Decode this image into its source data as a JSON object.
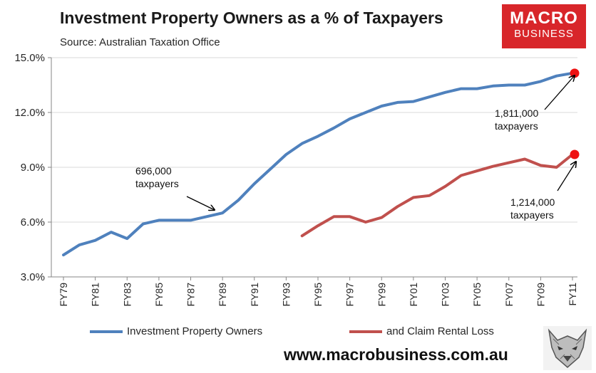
{
  "header": {
    "title": "Investment Property Owners as a % of Taxpayers",
    "subtitle": "Source: Australian Taxation Office"
  },
  "logo": {
    "line1": "MACRO",
    "line2": "BUSINESS"
  },
  "footer": {
    "website": "www.macrobusiness.com.au"
  },
  "colors": {
    "series1": "#4f81bd",
    "series2": "#c0504d",
    "marker": "#ee1111",
    "logo_bg": "#d8262a"
  },
  "chart_data": {
    "type": "line",
    "title": "Investment Property Owners as a % of Taxpayers",
    "x": [
      "FY79",
      "FY80",
      "FY81",
      "FY82",
      "FY83",
      "FY84",
      "FY85",
      "FY86",
      "FY87",
      "FY88",
      "FY89",
      "FY90",
      "FY91",
      "FY92",
      "FY93",
      "FY94",
      "FY95",
      "FY96",
      "FY97",
      "FY98",
      "FY99",
      "FY00",
      "FY01",
      "FY02",
      "FY03",
      "FY04",
      "FY05",
      "FY06",
      "FY07",
      "FY08",
      "FY09",
      "FY10",
      "FY11"
    ],
    "x_tick_labels": [
      "FY79",
      "FY81",
      "FY83",
      "FY85",
      "FY87",
      "FY89",
      "FY91",
      "FY93",
      "FY95",
      "FY97",
      "FY99",
      "FY01",
      "FY03",
      "FY05",
      "FY07",
      "FY09",
      "FY11"
    ],
    "y_ticks": [
      "3.0%",
      "6.0%",
      "9.0%",
      "12.0%",
      "15.0%"
    ],
    "y_tick_values": [
      3,
      6,
      9,
      12,
      15
    ],
    "ylim": [
      3,
      15
    ],
    "series": [
      {
        "name": "Investment Property Owners",
        "values": [
          4.2,
          4.75,
          5.0,
          5.45,
          5.1,
          5.9,
          6.1,
          6.1,
          6.1,
          6.3,
          6.5,
          7.2,
          8.1,
          8.9,
          9.7,
          10.3,
          10.7,
          11.15,
          11.65,
          12.0,
          12.35,
          12.55,
          12.6,
          12.85,
          13.1,
          13.3,
          13.3,
          13.45,
          13.5,
          13.5,
          13.7,
          14.0,
          14.15
        ]
      },
      {
        "name": "and Claim Rental Loss",
        "values": [
          null,
          null,
          null,
          null,
          null,
          null,
          null,
          null,
          null,
          null,
          null,
          null,
          null,
          null,
          null,
          5.25,
          5.8,
          6.3,
          6.3,
          6.0,
          6.25,
          6.85,
          7.35,
          7.45,
          7.95,
          8.55,
          8.8,
          9.05,
          9.25,
          9.45,
          9.1,
          9.0,
          9.7
        ]
      }
    ],
    "annotations": [
      {
        "line1": "696,000",
        "line2": "taxpayers",
        "x_index": 10,
        "y": 6.5
      },
      {
        "line1": "1,811,000",
        "line2": "taxpayers",
        "x_index": 32,
        "y": 14.15
      },
      {
        "line1": "1,214,000",
        "line2": "taxpayers",
        "x_index": 32,
        "y": 9.7
      }
    ],
    "legend": [
      "Investment Property Owners",
      "and Claim Rental Loss"
    ],
    "legend_position": "bottom"
  }
}
